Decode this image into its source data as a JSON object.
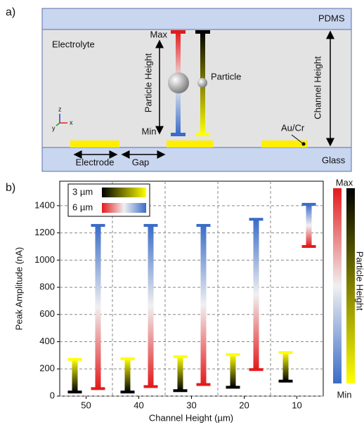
{
  "diagram": {
    "panel": "a)",
    "pdms": "PDMS",
    "electrolyte": "Electrolyte",
    "max": "Max",
    "min": "Min",
    "particle_height": "Particle Height",
    "particle": "Particle",
    "channel_height": "Channel Height",
    "au_cr": "Au/Cr",
    "electrode": "Electrode",
    "gap": "Gap",
    "glass": "Glass",
    "axis_z": "z",
    "axis_y": "y",
    "axis_x": "x"
  },
  "chart_data": {
    "type": "range-bar",
    "panel": "b)",
    "x_label": "Channel Height (µm)",
    "y_label": "Peak Amplitude (nA)",
    "categories": [
      "50",
      "40",
      "30",
      "20",
      "10"
    ],
    "series": [
      {
        "name": "3 µm",
        "colors": [
          "#000000",
          "#ffff00"
        ],
        "low": [
          30,
          30,
          40,
          65,
          110
        ],
        "high": [
          270,
          275,
          290,
          305,
          320
        ]
      },
      {
        "name": "6 µm",
        "colors": [
          "#e31a1c",
          "#f0f0f0",
          "#3a6cc8"
        ],
        "low": [
          55,
          70,
          85,
          195,
          1100
        ],
        "high": [
          1255,
          1255,
          1255,
          1300,
          1410
        ]
      }
    ],
    "ylim": [
      0,
      1580
    ],
    "yticks": [
      0,
      200,
      400,
      600,
      800,
      1000,
      1200,
      1400
    ],
    "grid": true,
    "colorbar": {
      "label": "Particle Height",
      "max": "Max",
      "min": "Min"
    }
  }
}
